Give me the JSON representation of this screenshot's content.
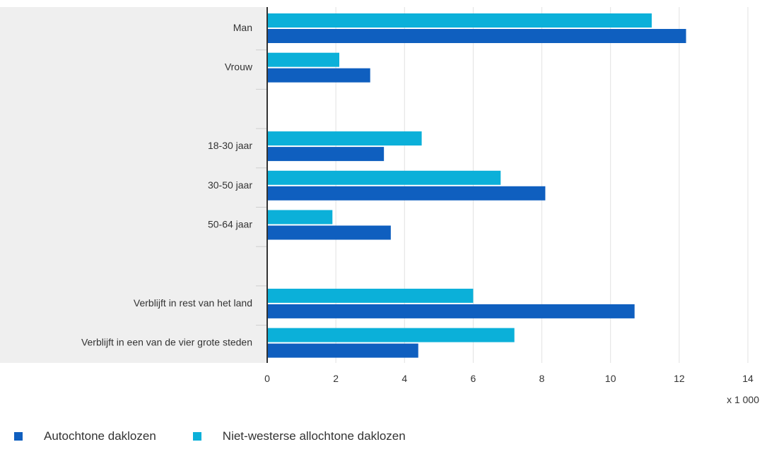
{
  "chart_data": {
    "type": "bar",
    "orientation": "horizontal",
    "unit_label": "x 1 000",
    "xlim": [
      0,
      14
    ],
    "x_ticks": [
      "0",
      "2",
      "4",
      "6",
      "8",
      "10",
      "12",
      "14"
    ],
    "grid": true,
    "legend_position": "bottom-left",
    "categories": [
      "Man",
      "Vrouw",
      "",
      "18-30 jaar",
      "30-50 jaar",
      "50-64 jaar",
      "",
      "Verblijft in rest van het land",
      "Verblijft in een van de vier grote steden"
    ],
    "series": [
      {
        "name": "Niet-westerse allochtone daklozen",
        "color": "#0bb0d9",
        "values": [
          11.2,
          2.1,
          null,
          4.5,
          6.8,
          1.9,
          null,
          6.0,
          7.2
        ]
      },
      {
        "name": "Autochtone daklozen",
        "color": "#0f5fbf",
        "values": [
          12.2,
          3.0,
          null,
          3.4,
          8.1,
          3.6,
          null,
          10.7,
          4.4
        ]
      }
    ],
    "legend_order": [
      "Autochtone daklozen",
      "Niet-westerse allochtone daklozen"
    ]
  }
}
